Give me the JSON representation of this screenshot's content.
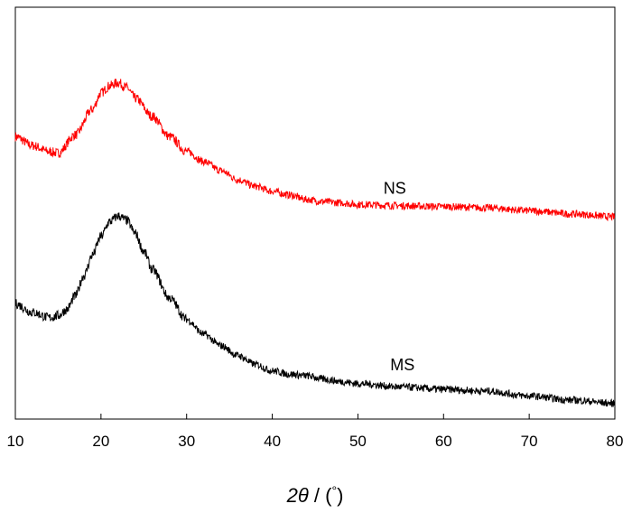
{
  "chart_data": {
    "type": "line",
    "title": "",
    "xlabel_parts": {
      "var": "2θ",
      "sep": " / (",
      "unit": "°",
      "close": ")"
    },
    "ylabel": "",
    "xlim": [
      10,
      80
    ],
    "ylim": [
      0,
      100
    ],
    "x_ticks": [
      10,
      20,
      30,
      40,
      50,
      60,
      70,
      80
    ],
    "y_ticks_shown": false,
    "grid": false,
    "legend": "none",
    "series": [
      {
        "name": "NS",
        "color": "#ff0000",
        "points": [
          [
            10,
            68.6
          ],
          [
            12,
            66.4
          ],
          [
            14,
            64.9
          ],
          [
            15,
            64.6
          ],
          [
            17,
            69
          ],
          [
            19,
            75.2
          ],
          [
            20,
            79.2
          ],
          [
            21,
            80.9
          ],
          [
            22,
            81.7
          ],
          [
            23,
            80.5
          ],
          [
            24,
            77.9
          ],
          [
            26,
            73.5
          ],
          [
            28,
            68.6
          ],
          [
            30,
            65
          ],
          [
            32,
            62.5
          ],
          [
            34,
            60.3
          ],
          [
            36,
            58.1
          ],
          [
            38,
            56.5
          ],
          [
            40,
            55.3
          ],
          [
            42,
            54.4
          ],
          [
            44,
            53.3
          ],
          [
            46,
            52.8
          ],
          [
            48,
            52.5
          ],
          [
            50,
            52.1
          ],
          [
            55,
            51.8
          ],
          [
            60,
            51.6
          ],
          [
            65,
            51.3
          ],
          [
            70,
            50.6
          ],
          [
            75,
            49.8
          ],
          [
            80,
            49.1
          ]
        ],
        "label_at": [
          54.3,
          54.7
        ]
      },
      {
        "name": "MS",
        "color": "#000000",
        "points": [
          [
            10,
            28
          ],
          [
            12,
            25.9
          ],
          [
            14,
            24.6
          ],
          [
            15,
            25.1
          ],
          [
            16,
            26.6
          ],
          [
            17,
            29.9
          ],
          [
            18,
            34.8
          ],
          [
            19,
            39.8
          ],
          [
            20,
            44.3
          ],
          [
            21,
            47.9
          ],
          [
            22,
            49.3
          ],
          [
            23,
            48.3
          ],
          [
            24,
            45.1
          ],
          [
            25,
            40.7
          ],
          [
            26,
            36.3
          ],
          [
            28,
            29.4
          ],
          [
            30,
            24.2
          ],
          [
            32,
            20.6
          ],
          [
            34,
            17.8
          ],
          [
            36,
            15.4
          ],
          [
            38,
            13.3
          ],
          [
            40,
            11.7
          ],
          [
            42,
            10.9
          ],
          [
            44,
            10.5
          ],
          [
            46,
            9.7
          ],
          [
            48,
            9.1
          ],
          [
            50,
            8.6
          ],
          [
            55,
            7.8
          ],
          [
            60,
            7.2
          ],
          [
            65,
            6.8
          ],
          [
            70,
            5.6
          ],
          [
            75,
            4.6
          ],
          [
            80,
            3.8
          ]
        ],
        "label_at": [
          55.2,
          11.8
        ]
      }
    ],
    "noise_amplitude": 0.9
  }
}
